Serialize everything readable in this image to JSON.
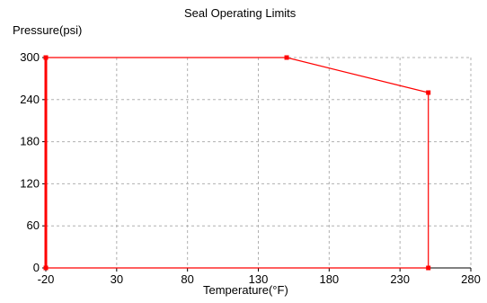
{
  "chart_data": {
    "type": "line",
    "title": "Seal Operating Limits",
    "xlabel": "Temperature(°F)",
    "ylabel": "Pressure(psi)",
    "xlim": [
      -20,
      280
    ],
    "ylim": [
      0,
      300
    ],
    "x_ticks": [
      -20,
      30,
      80,
      130,
      180,
      230,
      280
    ],
    "y_ticks": [
      0,
      60,
      120,
      180,
      240,
      300
    ],
    "grid": true,
    "series": [
      {
        "color": "#ff0000",
        "points": [
          {
            "x": -20,
            "y": 0
          },
          {
            "x": -20,
            "y": 300
          },
          {
            "x": 150,
            "y": 300
          },
          {
            "x": 250,
            "y": 250
          },
          {
            "x": 250,
            "y": 0
          },
          {
            "x": -20,
            "y": 0
          }
        ]
      }
    ],
    "colors": {
      "line": "#ff0000",
      "grid": "#b0b0b0",
      "axis": "#000000"
    }
  }
}
